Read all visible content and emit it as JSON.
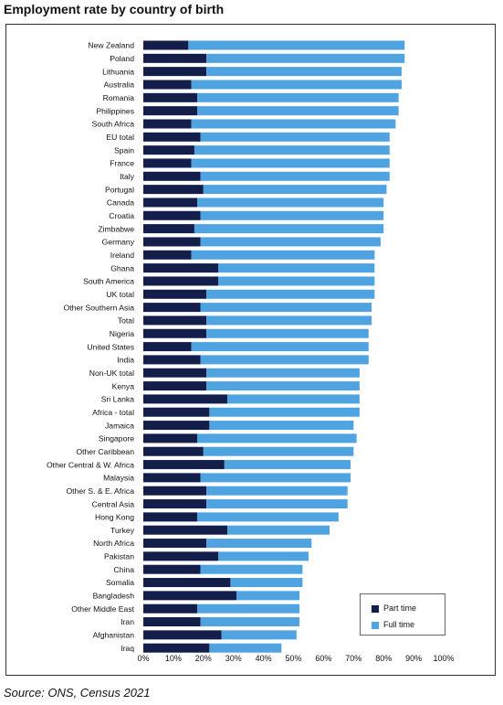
{
  "title": "Employment rate by country of birth",
  "source": "Source: ONS, Census 2021",
  "colors": {
    "part_time": "#131e4a",
    "full_time": "#4fa3e0"
  },
  "chart_data": {
    "type": "bar",
    "orientation": "horizontal",
    "stacked": true,
    "title": "Employment rate by country of birth",
    "xlim": [
      0,
      100
    ],
    "x_ticks": [
      "0%",
      "10%",
      "20%",
      "30%",
      "40%",
      "50%",
      "60%",
      "70%",
      "80%",
      "90%",
      "100%"
    ],
    "legend_position": "bottom-right",
    "categories": [
      "New Zealand",
      "Poland",
      "Lithuania",
      "Australia",
      "Romania",
      "Philippines",
      "South Africa",
      "EU total",
      "Spain",
      "France",
      "Italy",
      "Portugal",
      "Canada",
      "Croatia",
      "Zimbabwe",
      "Germany",
      "Ireland",
      "Ghana",
      "South America",
      "UK total",
      "Other Southern Asia",
      "Total",
      "Nigeria",
      "United States",
      "India",
      "Non-UK total",
      "Kenya",
      "Sri Lanka",
      "Africa - total",
      "Jamaica",
      "Singapore",
      "Other Caribbean",
      "Other Central & W. Africa",
      "Malaysia",
      "Other S. & E. Africa",
      "Central Asia",
      "Hong Kong",
      "Turkey",
      "North Africa",
      "Pakistan",
      "China",
      "Somalia",
      "Bangladesh",
      "Other Middle East",
      "Iran",
      "Afghanistan",
      "Iraq"
    ],
    "series": [
      {
        "name": "Part time",
        "values": [
          15,
          21,
          21,
          16,
          18,
          18,
          16,
          19,
          17,
          16,
          19,
          20,
          18,
          19,
          17,
          19,
          16,
          25,
          25,
          21,
          19,
          21,
          21,
          16,
          19,
          21,
          21,
          28,
          22,
          22,
          18,
          20,
          27,
          19,
          21,
          21,
          18,
          28,
          21,
          25,
          19,
          29,
          31,
          18,
          19,
          26,
          22
        ]
      },
      {
        "name": "Full time",
        "values": [
          72,
          66,
          65,
          70,
          67,
          67,
          68,
          63,
          65,
          66,
          63,
          61,
          62,
          61,
          63,
          60,
          61,
          52,
          52,
          56,
          57,
          55,
          54,
          59,
          56,
          51,
          51,
          44,
          50,
          48,
          53,
          50,
          42,
          50,
          47,
          47,
          47,
          34,
          35,
          30,
          34,
          24,
          21,
          34,
          33,
          25,
          24
        ]
      }
    ]
  },
  "legend": [
    {
      "label": "Part time",
      "color": "#131e4a"
    },
    {
      "label": "Full time",
      "color": "#4fa3e0"
    }
  ]
}
